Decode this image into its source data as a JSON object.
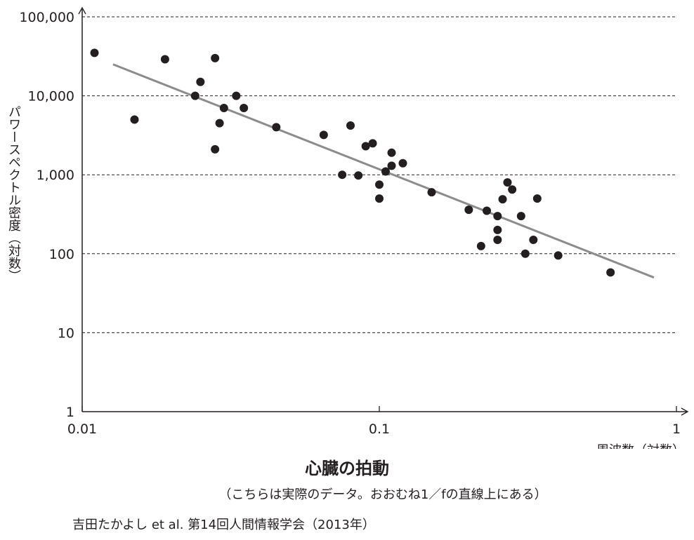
{
  "chart_data": {
    "type": "scatter",
    "xlabel": "周波数（対数）",
    "ylabel": "パワースペクトル密度（対数）",
    "x_scale": "log",
    "y_scale": "log",
    "xlim": [
      0.01,
      1
    ],
    "ylim": [
      1,
      100000
    ],
    "x_ticks": [
      0.01,
      0.1,
      1
    ],
    "x_tick_labels": [
      "0.01",
      "0.1",
      "1"
    ],
    "y_ticks": [
      1,
      10,
      100,
      1000,
      10000,
      100000
    ],
    "y_tick_labels": [
      "1",
      "10",
      "100",
      "1,000",
      "10,000",
      "100,000"
    ],
    "grid": "horizontal dashed",
    "points": [
      {
        "x": 0.011,
        "y": 35000
      },
      {
        "x": 0.015,
        "y": 5000
      },
      {
        "x": 0.019,
        "y": 29000
      },
      {
        "x": 0.024,
        "y": 10000
      },
      {
        "x": 0.025,
        "y": 15000
      },
      {
        "x": 0.028,
        "y": 30000
      },
      {
        "x": 0.028,
        "y": 2100
      },
      {
        "x": 0.029,
        "y": 4500
      },
      {
        "x": 0.03,
        "y": 7000
      },
      {
        "x": 0.033,
        "y": 10000
      },
      {
        "x": 0.035,
        "y": 7000
      },
      {
        "x": 0.045,
        "y": 4000
      },
      {
        "x": 0.065,
        "y": 3200
      },
      {
        "x": 0.075,
        "y": 1000
      },
      {
        "x": 0.08,
        "y": 4200
      },
      {
        "x": 0.085,
        "y": 980
      },
      {
        "x": 0.09,
        "y": 2300
      },
      {
        "x": 0.095,
        "y": 2500
      },
      {
        "x": 0.1,
        "y": 750
      },
      {
        "x": 0.1,
        "y": 500
      },
      {
        "x": 0.105,
        "y": 1100
      },
      {
        "x": 0.11,
        "y": 1900
      },
      {
        "x": 0.11,
        "y": 1300
      },
      {
        "x": 0.12,
        "y": 1400
      },
      {
        "x": 0.15,
        "y": 600
      },
      {
        "x": 0.2,
        "y": 360
      },
      {
        "x": 0.22,
        "y": 125
      },
      {
        "x": 0.23,
        "y": 350
      },
      {
        "x": 0.25,
        "y": 300
      },
      {
        "x": 0.25,
        "y": 200
      },
      {
        "x": 0.25,
        "y": 150
      },
      {
        "x": 0.26,
        "y": 490
      },
      {
        "x": 0.27,
        "y": 800
      },
      {
        "x": 0.28,
        "y": 650
      },
      {
        "x": 0.3,
        "y": 300
      },
      {
        "x": 0.31,
        "y": 100
      },
      {
        "x": 0.33,
        "y": 150
      },
      {
        "x": 0.34,
        "y": 500
      },
      {
        "x": 0.4,
        "y": 95
      },
      {
        "x": 0.6,
        "y": 58
      }
    ],
    "trendline": {
      "x": [
        0.0127,
        0.84
      ],
      "y": [
        25000,
        50
      ]
    }
  },
  "caption": {
    "title": "心臓の拍動",
    "subtitle": "（こちらは実際のデータ。おおむね1／fの直線上にある）",
    "source": "吉田たかよし et al. 第14回人間情報学会（2013年）"
  },
  "colors": {
    "points": "#231f20",
    "trendline": "#8c8c8c",
    "axis": "#231f20",
    "grid": "#231f20"
  }
}
